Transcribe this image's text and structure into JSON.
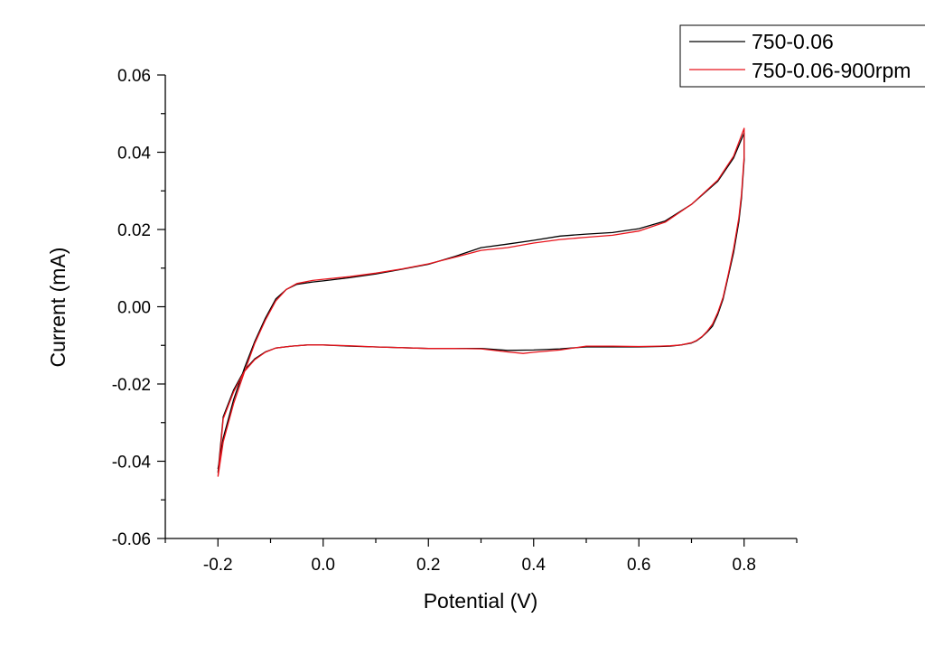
{
  "chart_data": {
    "type": "line",
    "xlabel": "Potential (V)",
    "ylabel": "Current (mA)",
    "xlim": [
      -0.3,
      0.9
    ],
    "ylim": [
      -0.06,
      0.06
    ],
    "x_ticks": [
      -0.2,
      0.0,
      0.2,
      0.4,
      0.6,
      0.8
    ],
    "x_tick_labels": [
      "-0.2",
      "0.0",
      "0.2",
      "0.4",
      "0.6",
      "0.8"
    ],
    "y_ticks": [
      -0.06,
      -0.04,
      -0.02,
      0.0,
      0.02,
      0.04,
      0.06
    ],
    "y_tick_labels": [
      "-0.06",
      "-0.04",
      "-0.02",
      "0.00",
      "0.02",
      "0.04",
      "0.06"
    ],
    "grid": false,
    "legend_position": "top-right",
    "series": [
      {
        "name": "750-0.06",
        "color": "#000000",
        "x": [
          -0.2,
          -0.19,
          -0.17,
          -0.15,
          -0.13,
          -0.11,
          -0.09,
          -0.07,
          -0.05,
          -0.02,
          0.0,
          0.05,
          0.1,
          0.15,
          0.2,
          0.25,
          0.3,
          0.35,
          0.4,
          0.45,
          0.5,
          0.55,
          0.6,
          0.65,
          0.7,
          0.75,
          0.78,
          0.8,
          0.8,
          0.795,
          0.79,
          0.78,
          0.77,
          0.76,
          0.75,
          0.74,
          0.73,
          0.72,
          0.71,
          0.7,
          0.68,
          0.66,
          0.64,
          0.6,
          0.55,
          0.5,
          0.45,
          0.4,
          0.35,
          0.3,
          0.25,
          0.2,
          0.15,
          0.1,
          0.05,
          0.0,
          -0.03,
          -0.06,
          -0.09,
          -0.11,
          -0.13,
          -0.15,
          -0.17,
          -0.19,
          -0.2
        ],
        "y": [
          -0.042,
          -0.034,
          -0.024,
          -0.016,
          -0.009,
          -0.003,
          0.002,
          0.0045,
          0.0058,
          0.0064,
          0.0067,
          0.0075,
          0.0085,
          0.0097,
          0.011,
          0.013,
          0.0153,
          0.0162,
          0.0172,
          0.0183,
          0.0188,
          0.0192,
          0.0202,
          0.0222,
          0.0265,
          0.0325,
          0.0385,
          0.045,
          0.038,
          0.028,
          0.022,
          0.014,
          0.008,
          0.002,
          -0.002,
          -0.005,
          -0.0065,
          -0.0078,
          -0.0088,
          -0.0094,
          -0.0099,
          -0.0102,
          -0.0103,
          -0.0104,
          -0.0104,
          -0.0104,
          -0.0109,
          -0.0112,
          -0.0113,
          -0.0108,
          -0.0108,
          -0.0108,
          -0.0106,
          -0.0104,
          -0.0102,
          -0.0099,
          -0.0099,
          -0.0102,
          -0.0107,
          -0.0117,
          -0.0135,
          -0.0165,
          -0.0215,
          -0.0285,
          -0.043
        ]
      },
      {
        "name": "750-0.06-900rpm",
        "color": "#e8141c",
        "x": [
          -0.2,
          -0.19,
          -0.17,
          -0.15,
          -0.13,
          -0.11,
          -0.09,
          -0.07,
          -0.05,
          -0.02,
          0.0,
          0.05,
          0.1,
          0.15,
          0.2,
          0.25,
          0.3,
          0.35,
          0.4,
          0.45,
          0.5,
          0.55,
          0.6,
          0.65,
          0.7,
          0.75,
          0.78,
          0.8,
          0.8,
          0.795,
          0.79,
          0.78,
          0.77,
          0.76,
          0.75,
          0.74,
          0.73,
          0.72,
          0.71,
          0.7,
          0.68,
          0.66,
          0.64,
          0.6,
          0.55,
          0.5,
          0.45,
          0.4,
          0.38,
          0.35,
          0.3,
          0.25,
          0.2,
          0.15,
          0.1,
          0.05,
          0.0,
          -0.03,
          -0.06,
          -0.09,
          -0.11,
          -0.13,
          -0.15,
          -0.17,
          -0.19,
          -0.2
        ],
        "y": [
          -0.044,
          -0.035,
          -0.025,
          -0.017,
          -0.0095,
          -0.0035,
          0.0015,
          0.0045,
          0.006,
          0.0068,
          0.0071,
          0.0078,
          0.0087,
          0.0098,
          0.0111,
          0.0128,
          0.0146,
          0.0153,
          0.0165,
          0.0174,
          0.018,
          0.0185,
          0.0196,
          0.0219,
          0.0265,
          0.0328,
          0.039,
          0.0462,
          0.039,
          0.029,
          0.023,
          0.015,
          0.0085,
          0.0025,
          -0.0015,
          -0.0045,
          -0.0063,
          -0.0077,
          -0.0087,
          -0.0093,
          -0.0099,
          -0.0101,
          -0.0102,
          -0.0103,
          -0.0102,
          -0.0102,
          -0.0112,
          -0.0118,
          -0.0121,
          -0.0117,
          -0.0109,
          -0.0108,
          -0.0108,
          -0.0106,
          -0.0104,
          -0.0101,
          -0.0099,
          -0.0099,
          -0.0102,
          -0.0107,
          -0.0118,
          -0.0137,
          -0.0168,
          -0.022,
          -0.029,
          -0.044
        ]
      }
    ]
  }
}
